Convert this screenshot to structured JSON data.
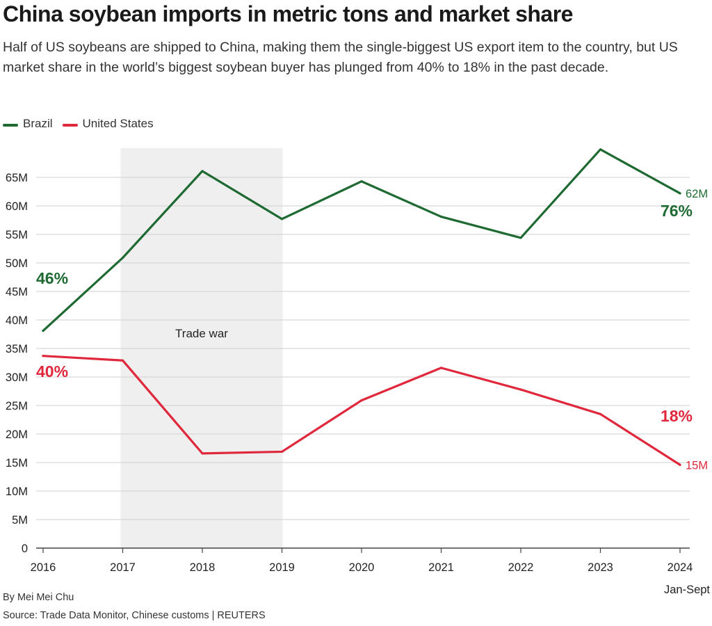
{
  "title": "China soybean imports in metric tons and market share",
  "subtitle": "Half of US soybeans are shipped to China, making them the single-biggest US export item to the country, but US market share in the world’s biggest soybean buyer has plunged from 40% to 18% in the past decade.",
  "byline": "By Mei Mei Chu",
  "source": "Source: Trade Data Monitor, Chinese customs | REUTERS",
  "colors": {
    "brazil": "#1e6a32",
    "us": "#e0283c",
    "shade": "#efefef",
    "grid": "#cfcfcf",
    "axis": "#444444"
  },
  "chart_data": {
    "type": "line",
    "x": [
      "2016",
      "2017",
      "2018",
      "2019",
      "2020",
      "2021",
      "2022",
      "2023",
      "2024"
    ],
    "x_sublabels": [
      "",
      "",
      "",
      "",
      "",
      "",
      "",
      "",
      "Jan-Sept"
    ],
    "ylim": [
      0,
      70
    ],
    "yticks": [
      0,
      5,
      10,
      15,
      20,
      25,
      30,
      35,
      40,
      45,
      50,
      55,
      60,
      65
    ],
    "ytick_labels": [
      "0",
      "5M",
      "10M",
      "15M",
      "20M",
      "25M",
      "30M",
      "35M",
      "40M",
      "45M",
      "50M",
      "55M",
      "60M",
      "65M"
    ],
    "grid": true,
    "legend_position": "top-left",
    "series": [
      {
        "name": "Brazil",
        "color": "#1e6a32",
        "values": [
          38.1,
          50.9,
          66.1,
          57.7,
          64.3,
          58.1,
          54.4,
          69.9,
          62.2
        ],
        "end_label": "62M",
        "start_share": "46%",
        "end_share": "76%"
      },
      {
        "name": "United States",
        "color": "#e0283c",
        "values": [
          33.7,
          32.9,
          16.6,
          16.9,
          25.9,
          31.6,
          27.8,
          23.5,
          14.6
        ],
        "end_label": "15M",
        "start_share": "40%",
        "end_share": "18%"
      }
    ],
    "annotations": [
      {
        "type": "shaded-range",
        "from": "2017",
        "to": "2019",
        "label": "Trade war"
      }
    ]
  }
}
